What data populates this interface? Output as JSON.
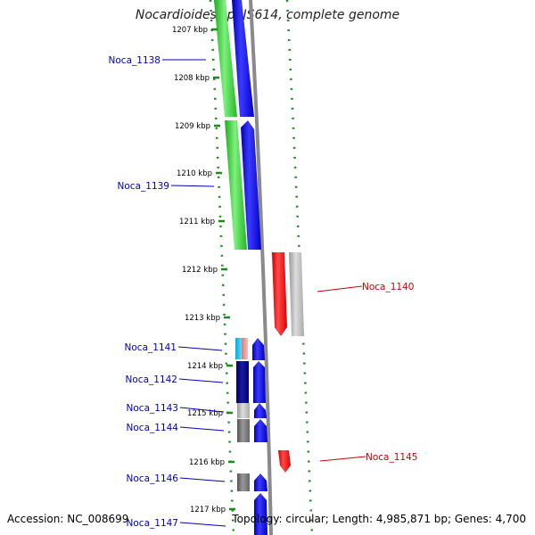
{
  "title": "Nocardioides sp. JS614, complete genome",
  "footer": {
    "accession": "Accession: NC_008699",
    "summary": "Topology: circular; Length: 4,985,871 bp; Genes: 4,700"
  },
  "colors": {
    "forward_cds": "#0000ee",
    "reverse_cds": "#ee0000",
    "green_track": "#33cc33",
    "skew": "#008000",
    "backbone": "#888888",
    "label_blue": "#0000bb",
    "label_red": "#cc0000"
  },
  "kbp_ticks": [
    "1207 kbp",
    "1208 kbp",
    "1209 kbp",
    "1210 kbp",
    "1211 kbp",
    "1212 kbp",
    "1213 kbp",
    "1214 kbp",
    "1215 kbp",
    "1216 kbp",
    "1217 kbp"
  ],
  "genes": [
    {
      "name": "Noca_1138",
      "strand": "forward"
    },
    {
      "name": "Noca_1139",
      "strand": "forward"
    },
    {
      "name": "Noca_1140",
      "strand": "reverse"
    },
    {
      "name": "Noca_1141",
      "strand": "forward"
    },
    {
      "name": "Noca_1142",
      "strand": "forward"
    },
    {
      "name": "Noca_1143",
      "strand": "forward"
    },
    {
      "name": "Noca_1144",
      "strand": "forward"
    },
    {
      "name": "Noca_1145",
      "strand": "reverse"
    },
    {
      "name": "Noca_1146",
      "strand": "forward"
    },
    {
      "name": "Noca_1147",
      "strand": "forward"
    }
  ]
}
